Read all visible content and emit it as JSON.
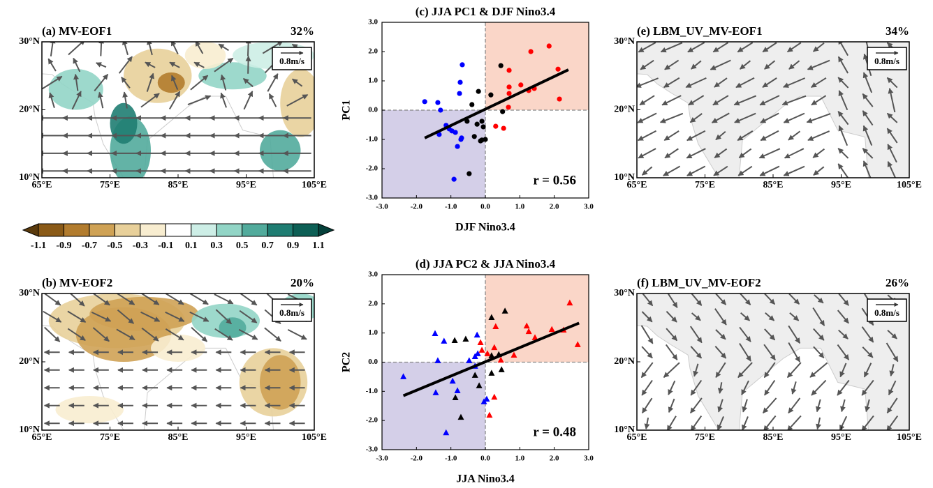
{
  "chart_data": [
    {
      "type": "map",
      "title": "(a) MV-EOF1",
      "percent": "32%",
      "vector_key": "0.8m/s",
      "xlim": [
        65,
        105
      ],
      "ylim": [
        10,
        30
      ],
      "xticks": [
        {
          "value": 65,
          "label": "65°E"
        },
        {
          "value": 75,
          "label": "75°E"
        },
        {
          "value": 85,
          "label": "85°E"
        },
        {
          "value": 95,
          "label": "95°E"
        },
        {
          "value": 105,
          "label": "105°E"
        }
      ],
      "yticks": [
        {
          "value": 10,
          "label": "10°N"
        },
        {
          "value": 20,
          "label": "20°N"
        },
        {
          "value": 30,
          "label": "30°N"
        }
      ]
    },
    {
      "type": "map",
      "title": "(b) MV-EOF2",
      "percent": "20%",
      "vector_key": "0.8m/s",
      "xlim": [
        65,
        105
      ],
      "ylim": [
        10,
        30
      ],
      "xticks": [
        {
          "value": 65,
          "label": "65°E"
        },
        {
          "value": 75,
          "label": "75°E"
        },
        {
          "value": 85,
          "label": "85°E"
        },
        {
          "value": 95,
          "label": "95°E"
        },
        {
          "value": 105,
          "label": "105°E"
        }
      ],
      "yticks": [
        {
          "value": 10,
          "label": "10°N"
        },
        {
          "value": 20,
          "label": "20°N"
        },
        {
          "value": 30,
          "label": "30°N"
        }
      ]
    },
    {
      "type": "scatter",
      "title": "(c) JJA PC1 & DJF Nino3.4",
      "x_label": "DJF Nino3.4",
      "y_label": "PC1",
      "annotation": "r = 0.56",
      "marker": "circle",
      "xlim": [
        -3,
        3
      ],
      "ylim": [
        -3,
        3
      ],
      "xticks": [
        {
          "value": -3,
          "label": "-3.0"
        },
        {
          "value": -2,
          "label": "-2.0"
        },
        {
          "value": -1,
          "label": "-1.0"
        },
        {
          "value": 0,
          "label": "0.0"
        },
        {
          "value": 1,
          "label": "1.0"
        },
        {
          "value": 2,
          "label": "2.0"
        },
        {
          "value": 3,
          "label": "3.0"
        }
      ],
      "yticks": [
        {
          "value": -3,
          "label": "-3.0"
        },
        {
          "value": -2,
          "label": "-2.0"
        },
        {
          "value": -1,
          "label": "-1.0"
        },
        {
          "value": 0,
          "label": "0.0"
        },
        {
          "value": 1,
          "label": "1.0"
        },
        {
          "value": 2,
          "label": "2.0"
        },
        {
          "value": 3,
          "label": "3.0"
        }
      ],
      "series": [
        {
          "color": "#0000ff",
          "x": [
            -1.76,
            -1.38,
            -1.3,
            -0.67,
            -0.73,
            -0.75,
            -1.14,
            -1.05,
            -1.34,
            -0.97,
            -0.69,
            -0.71,
            -0.81,
            -0.91,
            -0.87
          ],
          "y": [
            0.29,
            0.26,
            0,
            1.55,
            0.95,
            0.57,
            -0.52,
            -0.64,
            -0.83,
            -0.71,
            -0.95,
            -1.0,
            -1.24,
            -2.36,
            -0.76
          ]
        },
        {
          "color": "#000000",
          "x": [
            0.45,
            -0.2,
            -0.39,
            -0.53,
            -0.24,
            -0.1,
            -0.06,
            -0.32,
            -0.14,
            0,
            -0.1,
            -0.47,
            0.16,
            0.5
          ],
          "y": [
            1.52,
            0.64,
            0.19,
            -0.38,
            -0.48,
            -0.38,
            -0.57,
            -0.9,
            -1.05,
            -1.0,
            -1.02,
            -2.17,
            0.52,
            -0.05
          ]
        },
        {
          "color": "#ff0000",
          "x": [
            0.69,
            1.32,
            1.85,
            2.11,
            2.15,
            1.03,
            1.26,
            1.42,
            0.69,
            0.69,
            0.67,
            0.3,
            0.53
          ],
          "y": [
            1.36,
            2.0,
            2.19,
            1.4,
            0.38,
            0.86,
            0.67,
            0.74,
            0.79,
            0.57,
            0.1,
            -0.55,
            -0.62
          ]
        }
      ],
      "fit": {
        "x": [
          -1.76,
          2.41
        ],
        "y": [
          -0.95,
          1.38
        ]
      }
    },
    {
      "type": "scatter",
      "title": "(d) JJA PC2 & JJA Nino3.4",
      "x_label": "JJA Nino3.4",
      "y_label": "PC2",
      "annotation": "r = 0.48",
      "marker": "triangle",
      "xlim": [
        -3,
        3
      ],
      "ylim": [
        -3,
        3
      ],
      "xticks": [
        {
          "value": -3,
          "label": "-3.0"
        },
        {
          "value": -2,
          "label": "-2.0"
        },
        {
          "value": -1,
          "label": "-1.0"
        },
        {
          "value": 0,
          "label": "0.0"
        },
        {
          "value": 1,
          "label": "1.0"
        },
        {
          "value": 2,
          "label": "2.0"
        },
        {
          "value": 3,
          "label": "3.0"
        }
      ],
      "yticks": [
        {
          "value": -3,
          "label": "-3.0"
        },
        {
          "value": -2,
          "label": "-2.0"
        },
        {
          "value": -1,
          "label": "-1.0"
        },
        {
          "value": 0,
          "label": "0.0"
        },
        {
          "value": 1,
          "label": "1.0"
        },
        {
          "value": 2,
          "label": "2.0"
        },
        {
          "value": 3,
          "label": "3.0"
        }
      ],
      "series": [
        {
          "color": "#0000ff",
          "x": [
            -2.38,
            -1.46,
            -1.2,
            -1.38,
            -0.95,
            -1.44,
            -0.81,
            -1.14,
            -0.47,
            -0.3,
            -0.22,
            -0.24,
            -0.04,
            0.04,
            -0.3
          ],
          "y": [
            -0.5,
            0.98,
            0.72,
            0.05,
            -0.65,
            -1.05,
            -0.98,
            -2.42,
            0.05,
            0.19,
            0.29,
            0.93,
            -1.36,
            -1.27,
            -0.14
          ]
        },
        {
          "color": "#000000",
          "x": [
            -0.89,
            -0.57,
            -0.71,
            -0.87,
            -0.3,
            -0.18,
            0.18,
            0.57,
            0.18,
            0.18,
            0.47,
            0.39
          ],
          "y": [
            0.74,
            0.79,
            -1.89,
            -1.22,
            -0.45,
            -0.81,
            1.53,
            1.75,
            0.22,
            -0.38,
            -0.26,
            0.26
          ]
        },
        {
          "color": "#ff0000",
          "x": [
            -0.14,
            -0.1,
            0.06,
            0.26,
            0.12,
            0.3,
            1.2,
            1.26,
            1.44,
            1.93,
            2.27,
            2.45,
            2.68,
            0.45,
            0.83,
            0.26
          ],
          "y": [
            0.67,
            0.41,
            0.29,
            -1.2,
            -1.82,
            1.22,
            1.24,
            1.05,
            0.84,
            1.12,
            1.1,
            2.03,
            0.6,
            0.07,
            0.24,
            0.5
          ]
        }
      ],
      "fit": {
        "x": [
          -2.38,
          2.72
        ],
        "y": [
          -1.15,
          1.34
        ]
      }
    },
    {
      "type": "map",
      "title": "(e) LBM_UV_MV-EOF1",
      "percent": "34%",
      "vector_key": "0.8m/s",
      "xlim": [
        65,
        105
      ],
      "ylim": [
        10,
        30
      ],
      "xticks": [
        {
          "value": 65,
          "label": "65°E"
        },
        {
          "value": 75,
          "label": "75°E"
        },
        {
          "value": 85,
          "label": "85°E"
        },
        {
          "value": 95,
          "label": "95°E"
        },
        {
          "value": 105,
          "label": "105°E"
        }
      ],
      "yticks": [
        {
          "value": 10,
          "label": "10°N"
        },
        {
          "value": 20,
          "label": "20°N"
        },
        {
          "value": 30,
          "label": "30°N"
        }
      ]
    },
    {
      "type": "map",
      "title": "(f) LBM_UV_MV-EOF2",
      "percent": "26%",
      "vector_key": "0.8m/s",
      "xlim": [
        65,
        105
      ],
      "ylim": [
        10,
        30
      ],
      "xticks": [
        {
          "value": 65,
          "label": "65°E"
        },
        {
          "value": 75,
          "label": "75°E"
        },
        {
          "value": 85,
          "label": "85°E"
        },
        {
          "value": 95,
          "label": "95°E"
        },
        {
          "value": 105,
          "label": "105°E"
        }
      ],
      "yticks": [
        {
          "value": 10,
          "label": "10°N"
        },
        {
          "value": 20,
          "label": "20°N"
        },
        {
          "value": 30,
          "label": "30°N"
        }
      ]
    }
  ],
  "colorbar": {
    "ticks": [
      -1.1,
      -0.9,
      -0.7,
      -0.5,
      -0.3,
      -0.1,
      0.1,
      0.3,
      0.5,
      0.7,
      0.9,
      1.1
    ],
    "colors": [
      "#5a3a0c",
      "#8a5a17",
      "#b27c2e",
      "#cfa255",
      "#e8d09a",
      "#f8edd0",
      "#ffffff",
      "#cdeee6",
      "#92d5c6",
      "#52ab9c",
      "#1f7d72",
      "#0d5f55",
      "#05403a"
    ]
  }
}
